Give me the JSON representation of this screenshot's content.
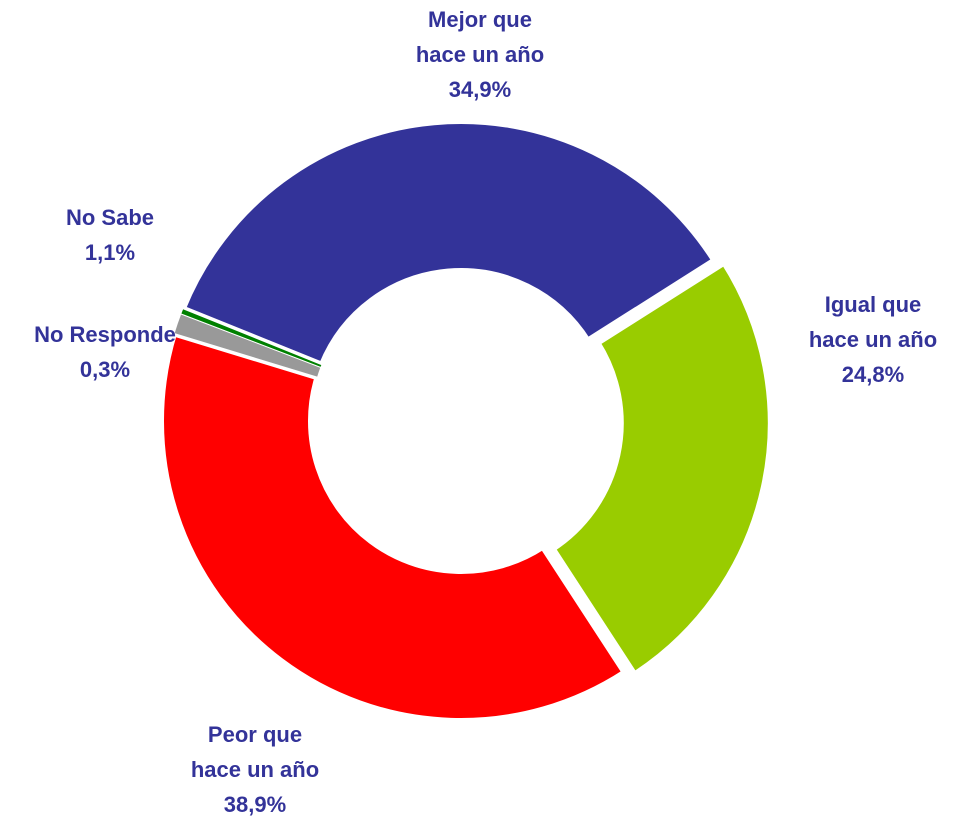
{
  "chart_data": {
    "type": "donut",
    "categories": [
      "Mejor que\nhace un año",
      "Igual que\nhace un año",
      "Peor que\nhace un año",
      "No Sabe",
      "No Responde"
    ],
    "values": [
      34.9,
      24.8,
      38.9,
      1.1,
      0.3
    ],
    "value_labels": [
      "34,9%",
      "24,8%",
      "38,9%",
      "1,1%",
      "0,3%"
    ],
    "colors": [
      "#333399",
      "#99cc00",
      "#ff0000",
      "#999999",
      "#008000"
    ]
  }
}
